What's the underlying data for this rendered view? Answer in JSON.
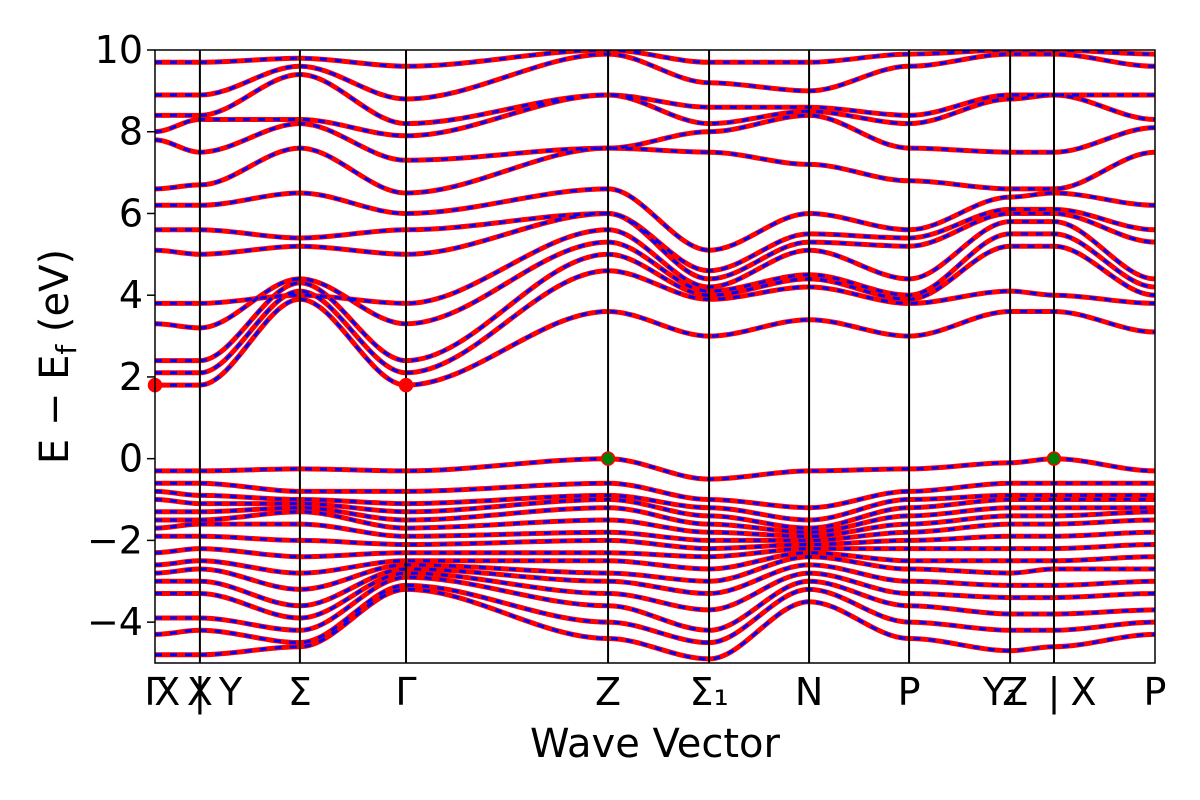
{
  "chart_data": {
    "type": "line",
    "title": "",
    "xlabel": "Wave Vector",
    "ylabel": "E − E_f (eV)",
    "ylabel_parts": {
      "main": "E − E",
      "sub": "f",
      "unit": "(eV)"
    },
    "ylim": [
      -5,
      10
    ],
    "yticks": [
      -4,
      -2,
      0,
      2,
      4,
      6,
      8,
      10
    ],
    "ytick_labels": [
      "−4",
      "−2",
      "0",
      "2",
      "4",
      "6",
      "8",
      "10"
    ],
    "x_path_positions": [
      0,
      0.44,
      1.42,
      2.46,
      4.44,
      5.43,
      6.41,
      7.39,
      8.38,
      8.81,
      9.8
    ],
    "kpoint_labels": [
      {
        "text": "Γ",
        "x": 0
      },
      {
        "text": "X",
        "x": 0.12
      },
      {
        "text": "X",
        "x": 0.44
      },
      {
        "text": "|",
        "x": 0.44
      },
      {
        "text": "Y",
        "x": 0.74
      },
      {
        "text": "Σ",
        "x": 1.42
      },
      {
        "text": "Γ",
        "x": 2.46
      },
      {
        "text": "Z",
        "x": 4.44
      },
      {
        "text": "Σ₁",
        "x": 5.43
      },
      {
        "text": "N",
        "x": 6.41
      },
      {
        "text": "P",
        "x": 7.39
      },
      {
        "text": "Y₁",
        "x": 8.3
      },
      {
        "text": "Z",
        "x": 8.43
      },
      {
        "text": "|",
        "x": 8.81
      },
      {
        "text": "X",
        "x": 9.1
      },
      {
        "text": "P",
        "x": 9.8
      }
    ],
    "series": [
      {
        "color": "#ff0000",
        "style": "solid",
        "bands": [
          [
            -4.8,
            -4.8,
            -4.6,
            -3.2,
            -4.4,
            -4.9,
            -3.5,
            -4.4,
            -4.7,
            -4.6,
            -4.3
          ],
          [
            -4.3,
            -4.2,
            -4.5,
            -3.1,
            -4.0,
            -4.5,
            -3.2,
            -4.0,
            -4.2,
            -4.2,
            -4.0
          ],
          [
            -3.9,
            -3.9,
            -4.2,
            -2.9,
            -3.6,
            -4.2,
            -3.0,
            -3.6,
            -3.8,
            -3.8,
            -3.7
          ],
          [
            -3.3,
            -3.3,
            -3.9,
            -2.8,
            -3.3,
            -3.7,
            -2.8,
            -3.3,
            -3.4,
            -3.4,
            -3.3
          ],
          [
            -3.0,
            -3.0,
            -3.6,
            -2.7,
            -3.0,
            -3.3,
            -2.6,
            -3.0,
            -3.1,
            -3.1,
            -3.0
          ],
          [
            -2.8,
            -2.7,
            -3.2,
            -2.6,
            -2.8,
            -3.0,
            -2.4,
            -2.7,
            -2.8,
            -2.7,
            -2.7
          ],
          [
            -2.6,
            -2.5,
            -2.8,
            -2.5,
            -2.5,
            -2.7,
            -2.3,
            -2.5,
            -2.5,
            -2.5,
            -2.4
          ],
          [
            -2.3,
            -2.2,
            -2.4,
            -2.3,
            -2.3,
            -2.4,
            -2.2,
            -2.2,
            -2.2,
            -2.2,
            -2.1
          ],
          [
            -1.9,
            -1.9,
            -2.0,
            -2.1,
            -2.0,
            -2.2,
            -2.1,
            -2.0,
            -1.9,
            -1.9,
            -1.8
          ],
          [
            -1.7,
            -1.6,
            -1.6,
            -1.9,
            -1.8,
            -2.0,
            -2.0,
            -1.8,
            -1.6,
            -1.6,
            -1.5
          ],
          [
            -1.5,
            -1.5,
            -1.3,
            -1.7,
            -1.5,
            -1.8,
            -1.9,
            -1.6,
            -1.4,
            -1.4,
            -1.3
          ],
          [
            -1.3,
            -1.3,
            -1.2,
            -1.5,
            -1.2,
            -1.6,
            -1.8,
            -1.4,
            -1.2,
            -1.2,
            -1.2
          ],
          [
            -1.0,
            -1.1,
            -1.1,
            -1.3,
            -1.0,
            -1.4,
            -1.7,
            -1.2,
            -1.0,
            -1.0,
            -1.0
          ],
          [
            -0.8,
            -0.9,
            -1.0,
            -1.1,
            -0.9,
            -1.2,
            -1.5,
            -1.0,
            -0.9,
            -0.9,
            -0.9
          ],
          [
            -0.6,
            -0.6,
            -0.8,
            -0.8,
            -0.6,
            -1.0,
            -1.2,
            -0.8,
            -0.6,
            -0.6,
            -0.6
          ],
          [
            -0.3,
            -0.3,
            -0.25,
            -0.3,
            0.0,
            -0.5,
            -0.3,
            -0.25,
            -0.1,
            0.0,
            -0.3
          ],
          [
            1.8,
            1.8,
            3.9,
            1.8,
            3.6,
            3.0,
            3.4,
            3.0,
            3.6,
            3.6,
            3.1
          ],
          [
            2.1,
            2.1,
            4.1,
            2.1,
            4.6,
            3.9,
            4.2,
            3.8,
            4.1,
            4.0,
            3.8
          ],
          [
            2.4,
            2.4,
            4.3,
            2.4,
            5.0,
            4.0,
            4.4,
            3.9,
            5.2,
            5.2,
            4.0
          ],
          [
            3.3,
            3.2,
            4.4,
            3.3,
            5.3,
            4.1,
            4.5,
            4.0,
            5.5,
            5.5,
            4.2
          ],
          [
            3.8,
            3.8,
            4.0,
            3.8,
            5.6,
            4.2,
            5.1,
            4.4,
            5.8,
            5.8,
            4.4
          ],
          [
            5.1,
            5.0,
            5.2,
            5.0,
            6.0,
            4.4,
            5.3,
            5.2,
            6.0,
            6.0,
            5.3
          ],
          [
            5.6,
            5.6,
            5.4,
            5.6,
            6.0,
            4.6,
            5.5,
            5.4,
            6.1,
            6.1,
            5.6
          ],
          [
            6.2,
            6.2,
            6.5,
            6.0,
            6.6,
            5.1,
            6.0,
            5.6,
            6.4,
            6.5,
            6.2
          ],
          [
            6.6,
            6.7,
            7.6,
            6.5,
            7.6,
            7.5,
            7.2,
            6.8,
            6.6,
            6.6,
            7.5
          ],
          [
            7.8,
            7.5,
            8.2,
            7.3,
            7.6,
            8.0,
            8.4,
            7.6,
            7.5,
            7.5,
            8.1
          ],
          [
            8.0,
            8.3,
            8.3,
            7.9,
            8.9,
            8.2,
            8.5,
            8.2,
            8.8,
            8.9,
            8.3
          ],
          [
            8.4,
            8.4,
            9.4,
            8.2,
            8.9,
            8.6,
            8.6,
            8.4,
            8.9,
            8.9,
            8.9
          ],
          [
            8.9,
            8.9,
            9.6,
            8.8,
            9.9,
            9.2,
            9.0,
            9.6,
            9.9,
            9.9,
            9.6
          ],
          [
            9.7,
            9.7,
            9.8,
            9.6,
            10.0,
            9.7,
            9.7,
            9.9,
            10.0,
            10.0,
            9.9
          ]
        ]
      },
      {
        "color": "#0000ff",
        "style": "dashed",
        "bands_same_as_first": true
      }
    ],
    "vbm_points": [
      {
        "x": 4.44,
        "y": 0.0,
        "color": "#008000"
      },
      {
        "x": 8.81,
        "y": 0.0,
        "color": "#008000"
      }
    ],
    "cbm_points": [
      {
        "x": 0,
        "y": 1.8,
        "color": "#ff0000"
      },
      {
        "x": 2.46,
        "y": 1.8,
        "color": "#ff0000"
      }
    ],
    "grid": false,
    "legend": "none"
  }
}
